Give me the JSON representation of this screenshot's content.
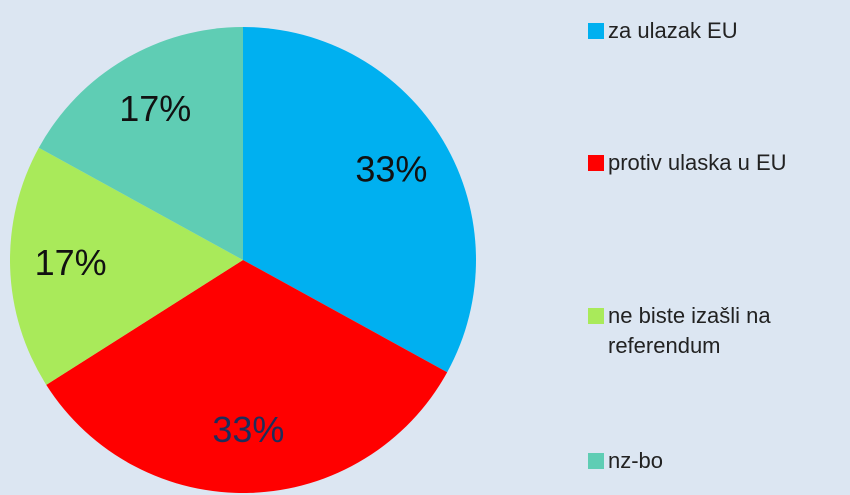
{
  "chart_data": {
    "type": "pie",
    "categories": [
      "za ulazak EU",
      "protiv ulaska u EU",
      "ne biste izašli na referendum",
      "nz-bo"
    ],
    "values": [
      33,
      33,
      17,
      17
    ],
    "value_labels": [
      "33%",
      "33%",
      "17%",
      "17%"
    ],
    "colors": [
      "#00b0f0",
      "#ff0000",
      "#a9ea5a",
      "#5fcdb4"
    ],
    "legend": "right"
  }
}
